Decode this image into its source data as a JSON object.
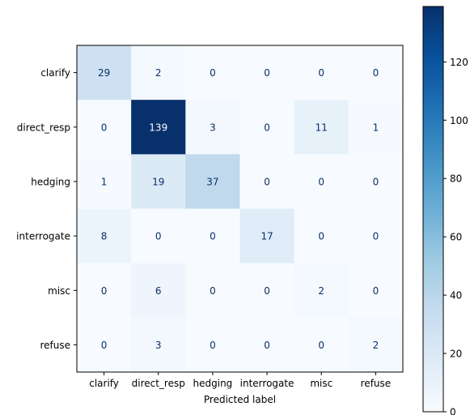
{
  "chart_data": {
    "type": "heatmap",
    "title": "",
    "xlabel": "Predicted label",
    "ylabel": "",
    "x_categories": [
      "clarify",
      "direct_resp",
      "hedging",
      "interrogate",
      "misc",
      "refuse"
    ],
    "y_categories": [
      "clarify",
      "direct_resp",
      "hedging",
      "interrogate",
      "misc",
      "refuse"
    ],
    "matrix": [
      [
        29,
        2,
        0,
        0,
        0,
        0
      ],
      [
        0,
        139,
        3,
        0,
        11,
        1
      ],
      [
        1,
        19,
        37,
        0,
        0,
        0
      ],
      [
        8,
        0,
        0,
        17,
        0,
        0
      ],
      [
        0,
        6,
        0,
        0,
        2,
        0
      ],
      [
        0,
        3,
        0,
        0,
        0,
        2
      ]
    ],
    "colormap": "Blues",
    "colormap_stops": [
      "#f7fbff",
      "#deebf7",
      "#c6dbef",
      "#9ecae1",
      "#6baed6",
      "#4292c6",
      "#2171b5",
      "#08519c",
      "#08306b"
    ],
    "value_range": [
      0,
      139
    ],
    "colorbar": {
      "ticks": [
        0,
        20,
        40,
        60,
        80,
        100,
        120
      ]
    },
    "text_colors": {
      "dark": "#08306b",
      "light": "#ffffff"
    }
  }
}
